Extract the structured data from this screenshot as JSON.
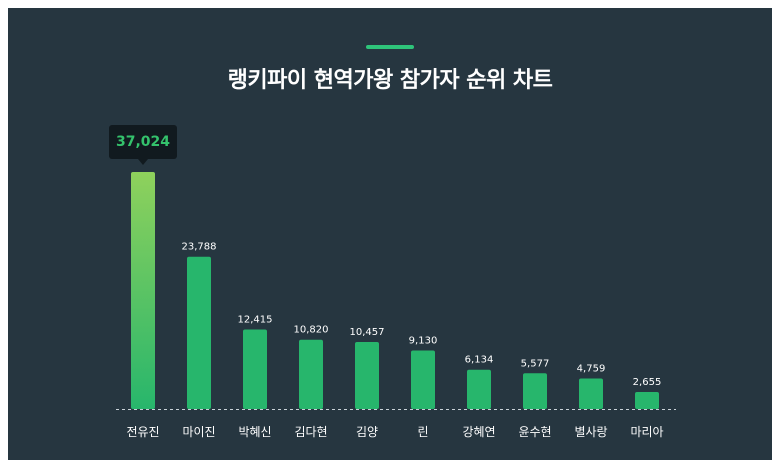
{
  "title": "랭키파이 현역가왕 참가자 순위 차트",
  "colors": {
    "background": "#263640",
    "bar": "#27b66c",
    "bar_highlight_top": "#8fd15c",
    "accent": "#2ec47a",
    "tooltip_bg": "#111a1f",
    "tooltip_text": "#34c26c",
    "label": "#ffffff"
  },
  "tooltip": {
    "value": "37,024"
  },
  "chart_data": {
    "type": "bar",
    "title": "랭키파이 현역가왕 참가자 순위 차트",
    "categories": [
      "전유진",
      "마이진",
      "박혜신",
      "김다현",
      "김양",
      "린",
      "강혜연",
      "윤수현",
      "별사랑",
      "마리아"
    ],
    "values": [
      37024,
      23788,
      12415,
      10820,
      10457,
      9130,
      6134,
      5577,
      4759,
      2655
    ],
    "value_labels": [
      "37,024",
      "23,788",
      "12,415",
      "10,820",
      "10,457",
      "9,130",
      "6,134",
      "5,577",
      "4,759",
      "2,655"
    ],
    "ylim": [
      0,
      37024
    ],
    "grid": false,
    "legend": "none"
  }
}
